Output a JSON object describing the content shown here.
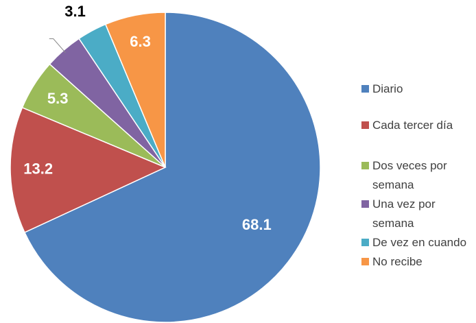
{
  "chart_data": {
    "type": "pie",
    "categories": [
      "Diario",
      "Cada tercer día",
      "Dos veces por semana",
      "Una vez por semana",
      "De vez en cuando",
      "No recibe"
    ],
    "values": [
      68.1,
      13.2,
      5.3,
      4.0,
      3.1,
      6.3
    ],
    "value_labels": [
      "68.1",
      "13.2",
      "5.3",
      null,
      "3.1",
      "6.3"
    ],
    "colors": [
      "#4f81bd",
      "#c0504d",
      "#9bbb59",
      "#8064a2",
      "#4bacc6",
      "#f79646"
    ],
    "legend": "right"
  }
}
